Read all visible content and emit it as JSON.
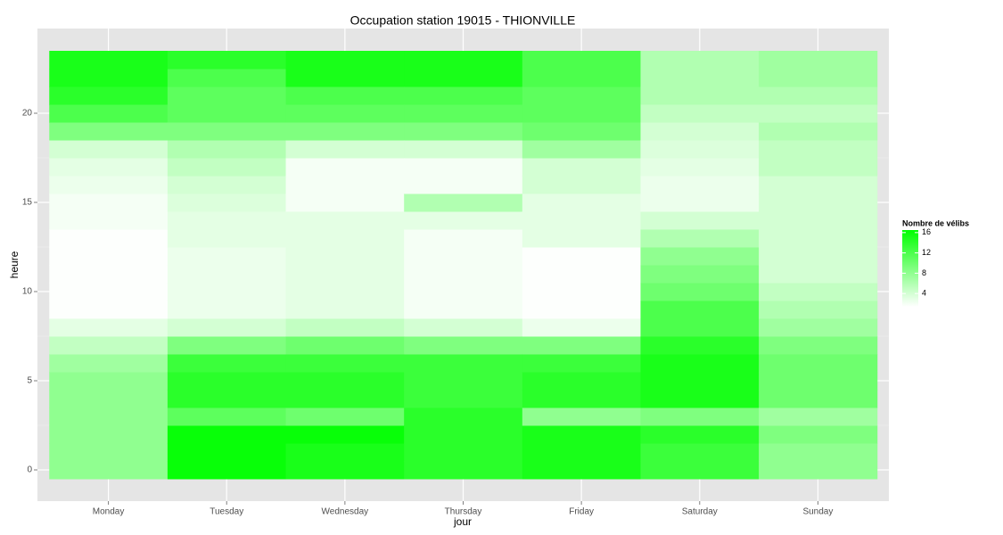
{
  "chart_data": {
    "type": "heatmap",
    "title": "Occupation station 19015 - THIONVILLE",
    "x_label": "jour",
    "y_label": "heure",
    "categories": [
      "Monday",
      "Tuesday",
      "Wednesday",
      "Thursday",
      "Friday",
      "Saturday",
      "Sunday"
    ],
    "y": [
      0,
      1,
      2,
      3,
      4,
      5,
      6,
      7,
      8,
      9,
      10,
      11,
      12,
      13,
      14,
      15,
      16,
      17,
      18,
      19,
      20,
      21,
      22,
      23
    ],
    "z": [
      [
        8,
        8,
        8,
        8,
        8,
        8,
        7,
        5,
        3,
        1.5,
        1.5,
        1.5,
        1.5,
        1.5,
        2,
        2,
        2.5,
        3,
        4,
        9,
        12,
        14,
        15,
        15
      ],
      [
        16,
        16,
        16,
        11,
        14,
        14,
        13,
        9,
        4,
        2.5,
        2.5,
        2.5,
        2.5,
        3,
        3,
        3.5,
        4,
        5,
        6,
        9,
        11,
        11,
        12,
        14
      ],
      [
        15,
        15,
        16,
        10,
        14,
        14,
        13,
        10,
        5,
        3,
        3,
        3,
        3,
        3,
        3,
        2,
        2,
        2,
        4,
        9,
        11,
        12,
        15,
        15
      ],
      [
        14,
        14,
        14,
        14,
        13,
        13,
        13,
        9,
        4,
        2,
        2,
        2,
        2,
        2,
        3,
        6,
        2,
        2,
        4,
        9,
        11,
        12,
        15,
        15
      ],
      [
        15,
        15,
        15,
        8,
        14,
        14,
        13,
        9,
        2.5,
        1.5,
        1.5,
        1.5,
        1.5,
        3,
        3,
        3,
        4,
        4,
        7,
        10,
        11,
        11,
        12,
        12
      ],
      [
        13,
        13,
        14,
        9,
        15,
        15,
        15,
        14,
        12,
        12,
        10,
        9,
        8,
        6,
        4,
        2.5,
        2.5,
        3,
        3.5,
        4,
        5,
        6,
        6,
        6
      ],
      [
        8,
        8,
        9,
        7,
        10,
        10,
        10,
        9,
        7,
        6,
        5,
        4,
        4,
        4,
        4,
        4,
        4,
        5,
        5,
        6,
        5,
        6,
        7,
        7
      ]
    ],
    "ylim": [
      -1.75,
      24.75
    ],
    "yticks": [
      0,
      5,
      10,
      15,
      20
    ],
    "grid": true,
    "colorbar": {
      "title": "Nombre de vélibs",
      "low_color": "#FFFFFF",
      "high_color": "#00FF00",
      "limits": [
        1.4,
        16.5
      ],
      "ticks": [
        4,
        8,
        12,
        16
      ]
    }
  }
}
